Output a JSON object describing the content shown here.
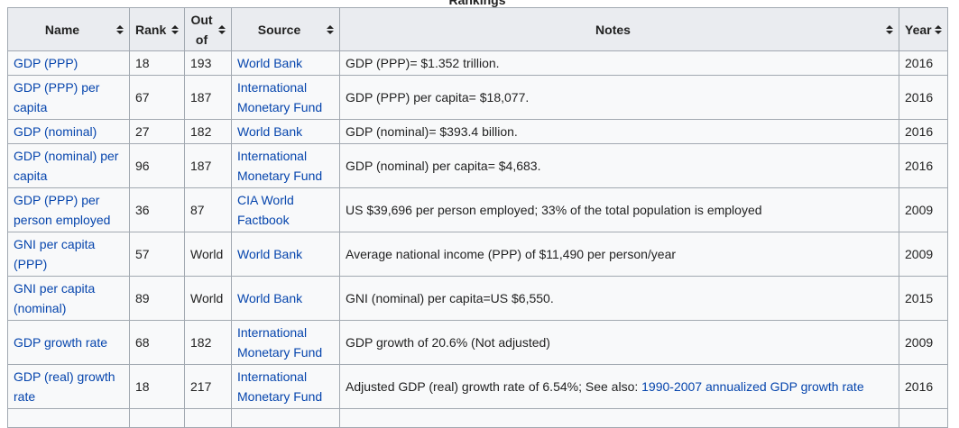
{
  "caption": "Rankings",
  "table": {
    "headers": [
      "Name",
      "Rank",
      "Out of",
      "Source",
      "Notes",
      "Year"
    ],
    "rows": [
      {
        "name": "GDP (PPP)",
        "rank": "18",
        "out_of": "193",
        "source": "World Bank",
        "notes": "GDP (PPP)= $1.352 trillion.",
        "year": "2016"
      },
      {
        "name": "GDP (PPP) per capita",
        "rank": "67",
        "out_of": "187",
        "source": "International Monetary Fund",
        "notes": "GDP (PPP) per capita= $18,077.",
        "year": "2016"
      },
      {
        "name": "GDP (nominal)",
        "rank": "27",
        "out_of": "182",
        "source": "World Bank",
        "notes": "GDP (nominal)= $393.4 billion.",
        "year": "2016"
      },
      {
        "name": "GDP (nominal) per capita",
        "rank": "96",
        "out_of": "187",
        "source": "International Monetary Fund",
        "notes": "GDP (nominal) per capita= $4,683.",
        "year": "2016"
      },
      {
        "name": "GDP (PPP) per person employed",
        "rank": "36",
        "out_of": "87",
        "source": "CIA World Factbook",
        "notes": "US $39,696 per person employed; 33% of the total population is employed",
        "year": "2009"
      },
      {
        "name": "GNI per capita (PPP)",
        "rank": "57",
        "out_of": "World",
        "source": "World Bank",
        "notes": "Average national income (PPP) of $11,490 per person/year",
        "year": "2009"
      },
      {
        "name": "GNI per capita (nominal)",
        "rank": "89",
        "out_of": "World",
        "source": "World Bank",
        "notes": "GNI (nominal) per capita=US $6,550.",
        "year": "2015"
      },
      {
        "name": "GDP growth rate",
        "rank": "68",
        "out_of": "182",
        "source": "International Monetary Fund",
        "notes": "GDP growth of 20.6% (Not adjusted)",
        "year": "2009"
      },
      {
        "name": "GDP (real) growth rate",
        "rank": "18",
        "out_of": "217",
        "source": "International Monetary Fund",
        "notes": "Adjusted GDP (real) growth rate of 6.54%; See also: ",
        "notes_link": "1990-2007 annualized GDP growth rate",
        "year": "2016"
      }
    ]
  }
}
